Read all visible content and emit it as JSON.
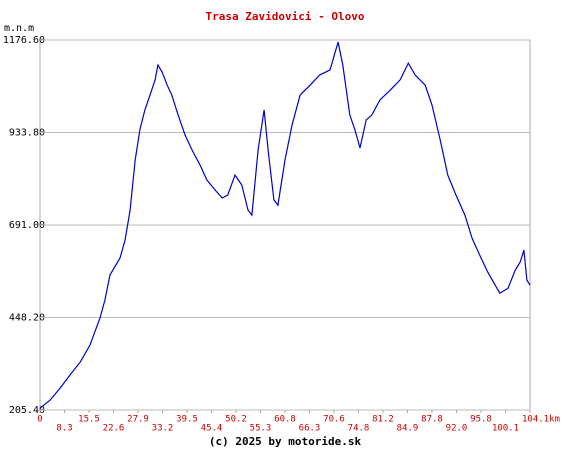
{
  "chart_data": {
    "type": "line",
    "title": "Trasa Zavidovici - Olovo",
    "y_label": "m.n.m",
    "footer": "(c) 2025 by motoride.sk",
    "grid": true,
    "ylim": [
      205.4,
      1176.6
    ],
    "yticks": [
      {
        "value": 205.4,
        "label": "205.40"
      },
      {
        "value": 448.2,
        "label": "448.20"
      },
      {
        "value": 691,
        "label": "691.00"
      },
      {
        "value": 933.8,
        "label": "933.80"
      },
      {
        "value": 1176.6,
        "label": "1176.60"
      }
    ],
    "xticks": [
      0,
      8.3,
      15.5,
      22.6,
      27.9,
      33.2,
      39.5,
      45.4,
      50.2,
      55.3,
      60.8,
      66.3,
      70.6,
      74.8,
      81.2,
      84.9,
      87.8,
      {
        "value": 92,
        "label": "92.0"
      },
      95.8,
      100.1,
      {
        "value": 104.1,
        "label": "104.1km"
      }
    ],
    "series": [
      {
        "color": "#0000cc",
        "x": [
          0,
          3.4,
          6.8,
          9.9,
          12.9,
          15.8,
          18.7,
          20.1,
          21.6,
          24.0,
          25.1,
          26.2,
          27.3,
          28.3,
          29.4,
          30.5,
          31.6,
          32.2,
          33.1,
          34.4,
          35.6,
          37.2,
          39.0,
          40.7,
          42.6,
          44.3,
          46.1,
          47.5,
          48.6,
          50.0,
          51.4,
          52.7,
          53.5,
          54.8,
          56.1,
          57.0,
          58.3,
          59.2,
          60.8,
          62.4,
          64.2,
          66.4,
          68.1,
          69.9,
          71.3,
          72.1,
          73.3,
          74.2,
          75.2,
          76.8,
          78.3,
          80.4,
          82.3,
          83.8,
          85.0,
          85.8,
          87.0,
          87.8,
          89.2,
          90.5,
          91.9,
          93.3,
          94.4,
          95.6,
          97.0,
          98.3,
          99.1,
          100.5,
          101.7,
          102.5,
          103.1,
          103.6,
          104.1
        ],
        "values": [
          210,
          231,
          263,
          297,
          331,
          376,
          447,
          494,
          560,
          604,
          652,
          730,
          862,
          940,
          993,
          1032,
          1072,
          1111,
          1093,
          1058,
          1032,
          980,
          927,
          888,
          849,
          809,
          783,
          762,
          770,
          822,
          796,
          730,
          717,
          888,
          993,
          888,
          757,
          743,
          862,
          954,
          1032,
          1058,
          1085,
          1098,
          1171,
          1111,
          980,
          940,
          893,
          967,
          980,
          1019,
          1045,
          1072,
          1116,
          1085,
          1058,
          1006,
          914,
          822,
          770,
          717,
          657,
          612,
          567,
          533,
          512,
          525,
          573,
          594,
          625,
          546,
          533
        ]
      }
    ]
  }
}
